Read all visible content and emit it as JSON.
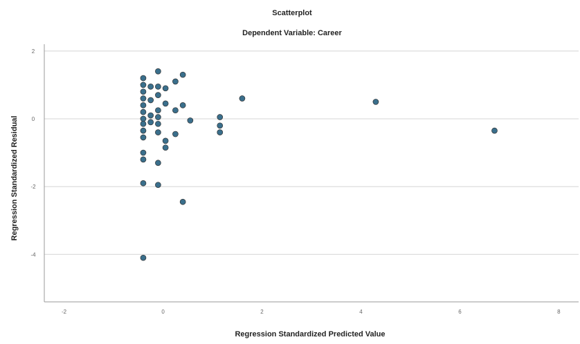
{
  "chart_data": {
    "type": "scatter",
    "title": "Scatterplot",
    "subtitle": "Dependent Variable: Career",
    "xlabel": "Regression Standardized Predicted Value",
    "ylabel": "Regression Standardized Residual",
    "xlim": [
      -2.4,
      8.4
    ],
    "ylim": [
      -5.4,
      2.2
    ],
    "xticks": [
      {
        "value": -2,
        "label": "-2"
      },
      {
        "value": 0,
        "label": "0"
      },
      {
        "value": 2,
        "label": "2"
      },
      {
        "value": 4,
        "label": "4"
      },
      {
        "value": 6,
        "label": "6"
      },
      {
        "value": 8,
        "label": "8"
      }
    ],
    "yticks": [
      {
        "value": 2,
        "label": "2"
      },
      {
        "value": 0,
        "label": "0"
      },
      {
        "value": -2,
        "label": "-2"
      },
      {
        "value": -4,
        "label": "-4"
      }
    ],
    "grid_y": [
      2,
      0,
      -2,
      -4
    ],
    "grid": true,
    "legend": "none",
    "colors": {
      "point": "#3a6f8c",
      "grid": "#d4d4d4"
    },
    "points": [
      {
        "x": -0.4,
        "y": 1.2
      },
      {
        "x": -0.4,
        "y": 1.0
      },
      {
        "x": -0.4,
        "y": 0.8
      },
      {
        "x": -0.4,
        "y": 0.6
      },
      {
        "x": -0.4,
        "y": 0.4
      },
      {
        "x": -0.4,
        "y": 0.2
      },
      {
        "x": -0.4,
        "y": 0.0
      },
      {
        "x": -0.4,
        "y": -0.15
      },
      {
        "x": -0.4,
        "y": -0.35
      },
      {
        "x": -0.4,
        "y": -0.55
      },
      {
        "x": -0.4,
        "y": -1.0
      },
      {
        "x": -0.4,
        "y": -1.2
      },
      {
        "x": -0.4,
        "y": -1.9
      },
      {
        "x": -0.4,
        "y": -4.1
      },
      {
        "x": -0.25,
        "y": 0.95
      },
      {
        "x": -0.25,
        "y": 0.55
      },
      {
        "x": -0.25,
        "y": 0.1
      },
      {
        "x": -0.25,
        "y": -0.1
      },
      {
        "x": -0.1,
        "y": 1.4
      },
      {
        "x": -0.1,
        "y": 0.95
      },
      {
        "x": -0.1,
        "y": 0.7
      },
      {
        "x": -0.1,
        "y": 0.25
      },
      {
        "x": -0.1,
        "y": 0.05
      },
      {
        "x": -0.1,
        "y": -0.15
      },
      {
        "x": -0.1,
        "y": -0.4
      },
      {
        "x": -0.1,
        "y": -1.3
      },
      {
        "x": -0.1,
        "y": -1.95
      },
      {
        "x": 0.05,
        "y": 0.9
      },
      {
        "x": 0.05,
        "y": 0.45
      },
      {
        "x": 0.05,
        "y": -0.65
      },
      {
        "x": 0.05,
        "y": -0.85
      },
      {
        "x": 0.25,
        "y": 1.1
      },
      {
        "x": 0.25,
        "y": 0.25
      },
      {
        "x": 0.25,
        "y": -0.45
      },
      {
        "x": 0.4,
        "y": 1.3
      },
      {
        "x": 0.4,
        "y": 0.4
      },
      {
        "x": 0.4,
        "y": -2.45
      },
      {
        "x": 0.55,
        "y": -0.05
      },
      {
        "x": 1.15,
        "y": 0.05
      },
      {
        "x": 1.15,
        "y": -0.2
      },
      {
        "x": 1.15,
        "y": -0.4
      },
      {
        "x": 1.6,
        "y": 0.6
      },
      {
        "x": 4.3,
        "y": 0.5
      },
      {
        "x": 6.7,
        "y": -0.35
      }
    ]
  }
}
